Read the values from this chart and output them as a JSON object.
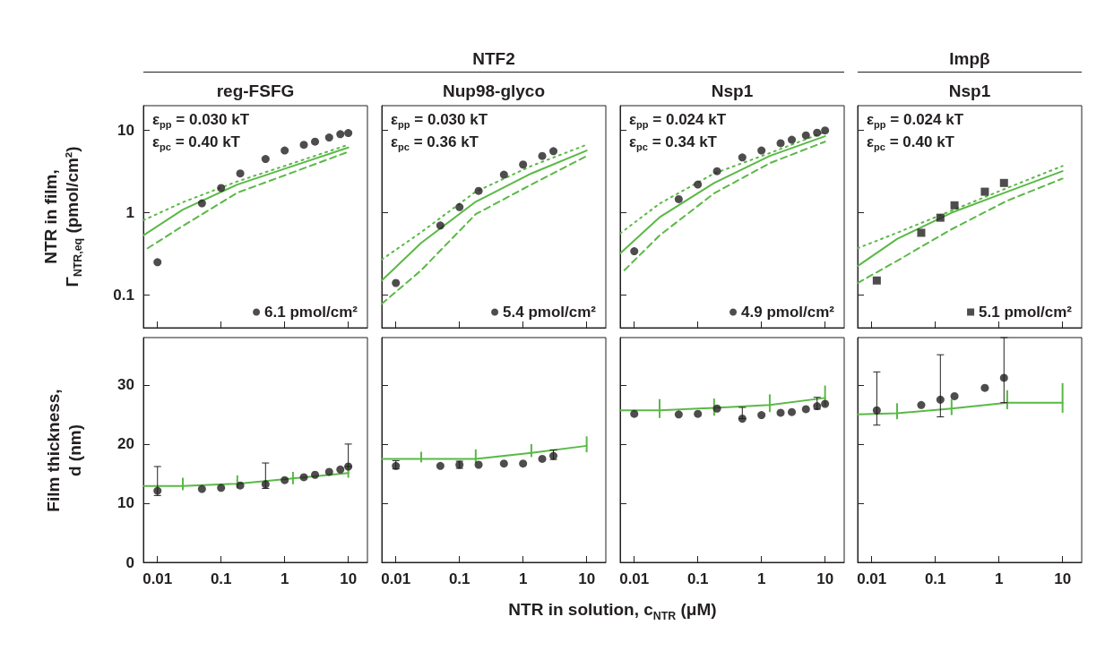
{
  "chart_data": [
    {
      "type": "scatter",
      "title": "reg-FSFG",
      "ylabel": "NTR in film,\nΓ$_{NTR,eq}$ (pmol/cm²)",
      "annotations": [
        "ε$_{pp}$ = 0.030 kT",
        "ε$_{pc}$ = 0.40 kT"
      ],
      "log": "xy",
      "xlim": [
        0.006,
        20
      ],
      "ylim": [
        0.04,
        20
      ],
      "xticks": [
        0.01,
        0.1,
        1,
        10
      ],
      "yticks": [
        0.1,
        1,
        10
      ],
      "tick_labels": "y",
      "legend": "bottom right",
      "series": [
        {
          "name": "6.1 pmol/cm²",
          "color": "#231f20",
          "marker": "circle",
          "x": [
            0.01,
            0.05,
            0.1,
            0.2,
            0.5,
            1,
            2,
            3,
            5,
            7.5,
            10
          ],
          "values": [
            0.25,
            1.3,
            2.0,
            3.0,
            4.5,
            5.7,
            6.7,
            7.3,
            8.2,
            9.0,
            9.3
          ]
        },
        {
          "type": "line",
          "color": "#5ab946",
          "line_style": "solid",
          "x": [
            0.006,
            0.025,
            0.18,
            1.35,
            10
          ],
          "values": [
            0.53,
            1.09,
            2.2,
            3.7,
            6.2
          ]
        },
        {
          "type": "line",
          "color": "#5ab946",
          "line_style": "dotted",
          "x": [
            0.006,
            0.025,
            0.18,
            1.35,
            10
          ],
          "values": [
            0.81,
            1.34,
            2.4,
            4.0,
            6.7
          ]
        },
        {
          "type": "line",
          "color": "#5ab946",
          "line_style": "dashed",
          "x": [
            0.007,
            0.025,
            0.18,
            1.35,
            10
          ],
          "values": [
            0.37,
            0.69,
            1.75,
            3.1,
            5.5
          ]
        }
      ]
    },
    {
      "type": "scatter",
      "subtitle": "NTF2",
      "title": "Nup98-glyco",
      "annotations": [
        "ε$_{pp}$ = 0.030 kT",
        "ε$_{pc}$ = 0.36 kT"
      ],
      "log": "xy",
      "xlim": [
        0.006,
        20
      ],
      "ylim": [
        0.04,
        20
      ],
      "xticks": [
        0.01,
        0.1,
        1,
        10
      ],
      "yticks": [
        0.1,
        1,
        10
      ],
      "tick_labels": false,
      "legend": "bottom right",
      "series": [
        {
          "name": "5.4 pmol/cm²",
          "color": "#231f20",
          "marker": "circle",
          "x": [
            0.01,
            0.05,
            0.1,
            0.2,
            0.5,
            1,
            2,
            3
          ],
          "values": [
            0.14,
            0.7,
            1.17,
            1.84,
            2.9,
            3.85,
            4.9,
            5.6
          ]
        },
        {
          "type": "line",
          "color": "#5ab946",
          "line_style": "solid",
          "x": [
            0.006,
            0.025,
            0.18,
            1.35,
            10
          ],
          "values": [
            0.15,
            0.43,
            1.36,
            3.0,
            5.7
          ]
        },
        {
          "type": "line",
          "color": "#5ab946",
          "line_style": "dotted",
          "x": [
            0.006,
            0.025,
            0.18,
            1.35,
            10
          ],
          "values": [
            0.27,
            0.58,
            1.8,
            3.7,
            6.7
          ]
        },
        {
          "type": "line",
          "color": "#5ab946",
          "line_style": "dashed",
          "x": [
            0.006,
            0.025,
            0.18,
            1.35,
            10
          ],
          "values": [
            0.078,
            0.2,
            0.96,
            2.2,
            4.9
          ]
        }
      ]
    },
    {
      "type": "scatter",
      "title": "Nsp1",
      "annotations": [
        "ε$_{pp}$ = 0.024 kT",
        "ε$_{pc}$ = 0.34 kT"
      ],
      "log": "xy",
      "xlim": [
        0.006,
        20
      ],
      "ylim": [
        0.04,
        20
      ],
      "xticks": [
        0.01,
        0.1,
        1,
        10
      ],
      "yticks": [
        0.1,
        1,
        10
      ],
      "tick_labels": false,
      "legend": "bottom right",
      "series": [
        {
          "name": "4.9 pmol/cm²",
          "color": "#231f20",
          "marker": "circle",
          "x": [
            0.01,
            0.05,
            0.1,
            0.2,
            0.5,
            1,
            2,
            3,
            5,
            7.5,
            10
          ],
          "values": [
            0.34,
            1.46,
            2.2,
            3.2,
            4.7,
            5.7,
            7.0,
            7.7,
            8.7,
            9.4,
            10
          ]
        },
        {
          "type": "line",
          "color": "#5ab946",
          "line_style": "solid",
          "x": [
            0.006,
            0.025,
            0.18,
            1.35,
            10
          ],
          "values": [
            0.32,
            0.88,
            2.3,
            4.9,
            8.5
          ]
        },
        {
          "type": "line",
          "color": "#5ab946",
          "line_style": "dotted",
          "x": [
            0.006,
            0.025,
            0.18,
            1.35,
            10
          ],
          "values": [
            0.56,
            1.29,
            3.0,
            5.3,
            9.6
          ]
        },
        {
          "type": "line",
          "color": "#5ab946",
          "line_style": "dashed",
          "x": [
            0.007,
            0.025,
            0.18,
            1.35,
            10
          ],
          "values": [
            0.2,
            0.53,
            1.72,
            4.0,
            7.3
          ]
        }
      ]
    },
    {
      "type": "scatter",
      "subtitle": "Impβ",
      "title": "Nsp1",
      "annotations": [
        "ε$_{pp}$ = 0.024 kT",
        "ε$_{pc}$ = 0.40 kT"
      ],
      "log": "xy",
      "xlim": [
        0.006,
        20
      ],
      "ylim": [
        0.04,
        20
      ],
      "xticks": [
        0.01,
        0.1,
        1,
        10
      ],
      "yticks": [
        0.1,
        1,
        10
      ],
      "tick_labels": false,
      "legend": "bottom right",
      "series": [
        {
          "name": "5.1 pmol/cm²",
          "color": "#231f20",
          "marker": "square",
          "x": [
            0.012,
            0.06,
            0.12,
            0.2,
            0.6,
            1.2
          ],
          "values": [
            0.15,
            0.57,
            0.87,
            1.23,
            1.8,
            2.3
          ]
        },
        {
          "type": "line",
          "color": "#5ab946",
          "line_style": "solid",
          "x": [
            0.006,
            0.025,
            0.18,
            1.35,
            10
          ],
          "values": [
            0.225,
            0.48,
            1.0,
            1.8,
            3.2
          ]
        },
        {
          "type": "line",
          "color": "#5ab946",
          "line_style": "dotted",
          "x": [
            0.006,
            0.025,
            0.18,
            1.35,
            10
          ],
          "values": [
            0.37,
            0.57,
            1.06,
            2.0,
            3.7
          ]
        },
        {
          "type": "line",
          "color": "#5ab946",
          "line_style": "dashed",
          "x": [
            0.006,
            0.025,
            0.18,
            1.35,
            10
          ],
          "values": [
            0.14,
            0.26,
            0.63,
            1.4,
            2.6
          ]
        }
      ]
    },
    {
      "type": "scatter",
      "ylabel": "Film thickness,\nd (nm)",
      "log": "x",
      "xlim": [
        0.006,
        20
      ],
      "ylim": [
        0,
        38
      ],
      "xticks": [
        0.01,
        0.1,
        1,
        10
      ],
      "yticks": [
        0,
        10,
        20,
        30
      ],
      "series": [
        {
          "color": "#231f20",
          "marker": "circle",
          "x": [
            0.01,
            0.05,
            0.1,
            0.2,
            0.5,
            1,
            2,
            3,
            5,
            7.5,
            10
          ],
          "values": [
            12.1,
            12.4,
            12.6,
            13.0,
            13.2,
            13.9,
            14.4,
            14.8,
            15.3,
            15.7,
            16.2
          ],
          "errors": [
            [
              11.3,
              16.2
            ],
            null,
            null,
            null,
            [
              12.5,
              16.8
            ],
            null,
            null,
            null,
            null,
            null,
            [
              16.2,
              20.0
            ]
          ]
        },
        {
          "type": "line",
          "color": "#5ab946",
          "line_style": "solid",
          "x": [
            0.006,
            0.025,
            0.18,
            1.35,
            10
          ],
          "values": [
            12.9,
            12.9,
            13.3,
            14.2,
            15.1
          ],
          "errors": [
            null,
            [
              12.2,
              14.3
            ],
            [
              12.5,
              14.7
            ],
            [
              13.2,
              15.3
            ],
            [
              14.3,
              16.3
            ]
          ]
        }
      ]
    },
    {
      "type": "scatter",
      "xlabel": "NTR in solution, c$_{NTR}$ (μM)",
      "log": "x",
      "xlim": [
        0.006,
        20
      ],
      "ylim": [
        0,
        38
      ],
      "xticks": [
        0.01,
        0.1,
        1,
        10
      ],
      "yticks": [
        0,
        10,
        20,
        30
      ],
      "tick_labels": "x",
      "series": [
        {
          "color": "#231f20",
          "marker": "circle",
          "x": [
            0.01,
            0.05,
            0.1,
            0.2,
            0.5,
            1,
            2,
            3
          ],
          "values": [
            16.3,
            16.3,
            16.5,
            16.5,
            16.7,
            16.7,
            17.5,
            18.0
          ],
          "errors": [
            [
              15.8,
              17.2
            ],
            null,
            [
              15.9,
              17.1
            ],
            null,
            null,
            null,
            null,
            [
              17.4,
              19.0
            ]
          ]
        },
        {
          "type": "line",
          "color": "#5ab946",
          "line_style": "solid",
          "x": [
            0.006,
            0.025,
            0.18,
            1.35,
            10
          ],
          "values": [
            17.5,
            17.5,
            17.5,
            18.5,
            19.7
          ],
          "errors": [
            null,
            [
              16.9,
              18.7
            ],
            [
              16.8,
              19.1
            ],
            [
              17.8,
              20.0
            ],
            [
              18.6,
              21.3
            ]
          ]
        }
      ]
    },
    {
      "type": "scatter",
      "log": "x",
      "xlim": [
        0.006,
        20
      ],
      "ylim": [
        0,
        38
      ],
      "xticks": [
        0.01,
        0.1,
        1,
        10
      ],
      "yticks": [
        0,
        10,
        20,
        30
      ],
      "tick_labels": "x",
      "series": [
        {
          "color": "#231f20",
          "marker": "circle",
          "x": [
            0.01,
            0.05,
            0.1,
            0.2,
            0.5,
            1,
            2,
            3,
            5,
            7.5,
            10
          ],
          "values": [
            25.1,
            25.0,
            25.1,
            26.0,
            24.3,
            24.9,
            25.3,
            25.4,
            25.9,
            26.4,
            26.8
          ],
          "errors": [
            null,
            null,
            null,
            null,
            [
              24.3,
              26.2
            ],
            null,
            null,
            null,
            null,
            [
              25.9,
              27.9
            ],
            null
          ]
        },
        {
          "type": "line",
          "color": "#5ab946",
          "line_style": "solid",
          "x": [
            0.006,
            0.025,
            0.18,
            1.35,
            10
          ],
          "values": [
            25.7,
            25.7,
            26.1,
            26.6,
            27.8
          ],
          "errors": [
            null,
            [
              24.4,
              27.6
            ],
            [
              24.8,
              27.7
            ],
            [
              25.4,
              28.4
            ],
            [
              26.5,
              29.9
            ]
          ]
        }
      ]
    },
    {
      "type": "scatter",
      "log": "x",
      "xlim": [
        0.006,
        20
      ],
      "ylim": [
        0,
        38
      ],
      "xticks": [
        0.01,
        0.1,
        1,
        10
      ],
      "yticks": [
        0,
        10,
        20,
        30
      ],
      "tick_labels": "x",
      "series": [
        {
          "color": "#231f20",
          "marker": "circle",
          "x": [
            0.012,
            0.06,
            0.12,
            0.2,
            0.6,
            1.2
          ],
          "values": [
            25.7,
            26.6,
            27.5,
            28.1,
            29.5,
            31.2
          ],
          "errors": [
            [
              23.2,
              32.2
            ],
            null,
            [
              24.6,
              35.1
            ],
            null,
            null,
            [
              27.0,
              38
            ]
          ]
        },
        {
          "type": "line",
          "color": "#5ab946",
          "line_style": "solid",
          "x": [
            0.006,
            0.025,
            0.18,
            1.35,
            10
          ],
          "values": [
            25.0,
            25.2,
            26.0,
            27.0,
            27.0
          ],
          "errors": [
            null,
            [
              24.2,
              26.9
            ],
            [
              24.9,
              27.6
            ],
            [
              25.9,
              29.1
            ],
            [
              25.3,
              30.3
            ]
          ]
        }
      ]
    }
  ]
}
